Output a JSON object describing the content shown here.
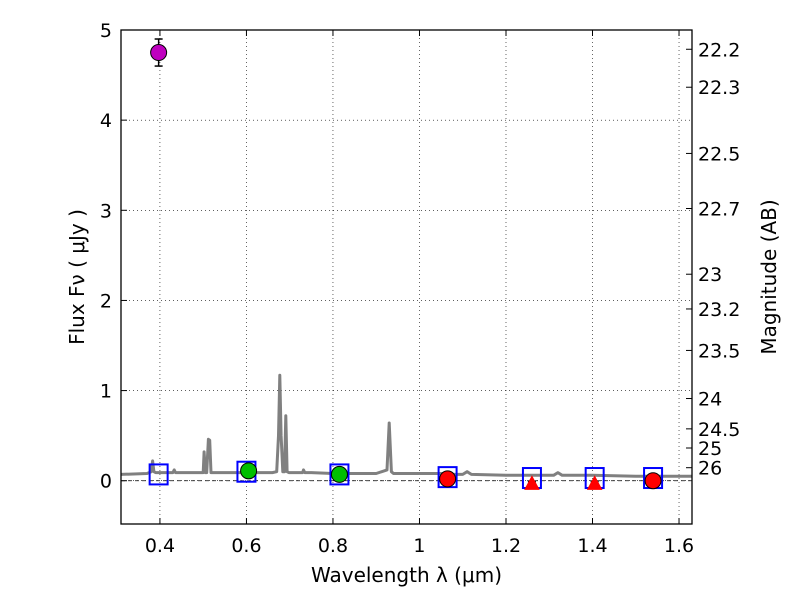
{
  "chart_data": {
    "type": "scatter",
    "title": "",
    "xlabel": "Wavelength  λ (μm)",
    "ylabel": "Flux  Fν  ( μJy )",
    "y2label": "Magnitude (AB)",
    "xlim": [
      0.31,
      1.63
    ],
    "ylim": [
      -0.48,
      5.0
    ],
    "grid": true,
    "xticks": [
      0.4,
      0.6,
      0.8,
      1.0,
      1.2,
      1.4,
      1.6
    ],
    "xtick_labels": [
      "0.4",
      "0.6",
      "0.8",
      "1",
      "1.2",
      "1.4",
      "1.6"
    ],
    "yticks": [
      0,
      1,
      2,
      3,
      4,
      5
    ],
    "ytick_labels": [
      "0",
      "1",
      "2",
      "3",
      "4",
      "5"
    ],
    "y2ticks": [
      {
        "label": "22.2",
        "mag": 22.2
      },
      {
        "label": "22.3",
        "mag": 22.3
      },
      {
        "label": "22.5",
        "mag": 22.5
      },
      {
        "label": "22.7",
        "mag": 22.7
      },
      {
        "label": "23",
        "mag": 23.0
      },
      {
        "label": "23.2",
        "mag": 23.2
      },
      {
        "label": "23.5",
        "mag": 23.5
      },
      {
        "label": "24",
        "mag": 24.0
      },
      {
        "label": "24.5",
        "mag": 24.5
      },
      {
        "label": "25",
        "mag": 25.0
      },
      {
        "label": "26",
        "mag": 26.0
      }
    ],
    "reference_line": {
      "y": 0,
      "style": "dashed"
    },
    "series": [
      {
        "name": "model spectrum",
        "kind": "line",
        "color": "#808080",
        "x": [
          0.31,
          0.37,
          0.38,
          0.383,
          0.386,
          0.39,
          0.4,
          0.43,
          0.433,
          0.436,
          0.46,
          0.49,
          0.5,
          0.502,
          0.505,
          0.508,
          0.512,
          0.515,
          0.518,
          0.522,
          0.55,
          0.6,
          0.64,
          0.66,
          0.67,
          0.674,
          0.677,
          0.68,
          0.684,
          0.688,
          0.691,
          0.694,
          0.698,
          0.72,
          0.73,
          0.732,
          0.735,
          0.75,
          0.8,
          0.9,
          0.925,
          0.93,
          0.935,
          0.94,
          0.97,
          1.0,
          1.05,
          1.08,
          1.1,
          1.11,
          1.12,
          1.2,
          1.3,
          1.31,
          1.32,
          1.33,
          1.4,
          1.5,
          1.63
        ],
        "y": [
          0.07,
          0.08,
          0.1,
          0.22,
          0.1,
          0.09,
          0.09,
          0.09,
          0.12,
          0.09,
          0.09,
          0.09,
          0.09,
          0.32,
          0.09,
          0.09,
          0.46,
          0.45,
          0.09,
          0.09,
          0.09,
          0.09,
          0.09,
          0.09,
          0.1,
          0.5,
          1.17,
          0.5,
          0.1,
          0.1,
          0.72,
          0.1,
          0.09,
          0.09,
          0.09,
          0.12,
          0.09,
          0.09,
          0.08,
          0.08,
          0.12,
          0.64,
          0.1,
          0.08,
          0.08,
          0.08,
          0.08,
          0.07,
          0.07,
          0.1,
          0.07,
          0.06,
          0.06,
          0.06,
          0.09,
          0.06,
          0.06,
          0.05,
          0.05
        ]
      },
      {
        "name": "model photometry",
        "kind": "open-square",
        "color": "#0000ff",
        "x": [
          0.397,
          0.6,
          0.815,
          1.065,
          1.26,
          1.405,
          1.54
        ],
        "y": [
          0.07,
          0.1,
          0.07,
          0.04,
          0.03,
          0.03,
          0.03
        ]
      },
      {
        "name": "purple detection",
        "kind": "circle",
        "color": "#bf00bf",
        "x": [
          0.397
        ],
        "y": [
          4.75
        ],
        "yerr": [
          0.15
        ]
      },
      {
        "name": "green detections",
        "kind": "circle",
        "color": "#00bf00",
        "x": [
          0.605,
          0.815
        ],
        "y": [
          0.11,
          0.07
        ],
        "yerr": [
          0.04,
          0.03
        ]
      },
      {
        "name": "red detections",
        "kind": "circle",
        "color": "#ff0000",
        "x": [
          1.065,
          1.54
        ],
        "y": [
          0.02,
          0.0
        ],
        "yerr": [
          0.03,
          0.02
        ]
      },
      {
        "name": "red upper-limit triangles",
        "kind": "triangle",
        "color": "#ff0000",
        "x": [
          1.26,
          1.405
        ],
        "y": [
          -0.04,
          -0.04
        ],
        "yerr": [
          0.03,
          0.03
        ]
      }
    ]
  }
}
